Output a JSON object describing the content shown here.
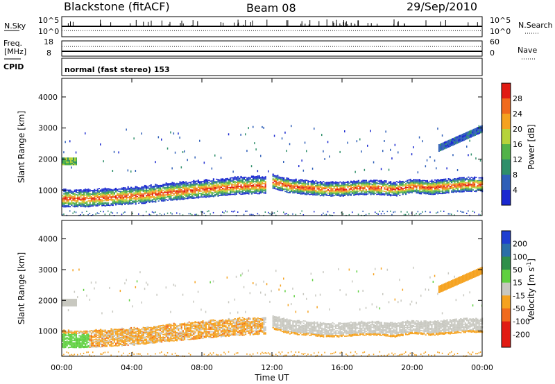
{
  "header": {
    "station": "Blackstone (fitACF)",
    "beam": "Beam 08",
    "date": "29/Sep/2010"
  },
  "top_panels": {
    "nsky_label": "N.Sky",
    "nsky_ticks": [
      "10^5",
      "10^0"
    ],
    "nsearch_label": "N.Search",
    "freq_label_1": "Freq.",
    "freq_label_2": "[MHz]",
    "freq_ticks": [
      "18",
      "8"
    ],
    "nave_ticks": [
      "60",
      "0"
    ],
    "nave_label": "Nave",
    "cpid_label": "CPID",
    "cpid_text": "normal (fast stereo) 153"
  },
  "chart_data": [
    {
      "type": "heatmap",
      "name": "power",
      "ylabel": "Slant Range [km]",
      "ylim": [
        180,
        4600
      ],
      "yticks": [
        "1000",
        "2000",
        "3000",
        "4000"
      ],
      "xlim": [
        "00:00",
        "24:00"
      ],
      "colorbar": {
        "label": "Power [dB]",
        "ticks": [
          "4",
          "8",
          "12",
          "16",
          "20",
          "24",
          "28"
        ],
        "range": [
          0,
          32
        ],
        "colors": [
          "#1a28d0",
          "#2f5fb8",
          "#2f8f6a",
          "#52b348",
          "#b6d33a",
          "#f5a21f",
          "#f06a1c",
          "#e11b13"
        ]
      },
      "bands": [
        {
          "x": [
            "00:00",
            "01:30",
            "03:00",
            "04:30",
            "06:00",
            "07:00",
            "08:00",
            "09:00",
            "10:00",
            "11:00",
            "11:40"
          ],
          "center_km": [
            700,
            700,
            750,
            800,
            900,
            950,
            1000,
            1050,
            1100,
            1120,
            1130
          ]
        },
        {
          "x": [
            "12:00",
            "13:00",
            "14:00",
            "15:00",
            "16:00",
            "17:00",
            "18:00",
            "19:00",
            "20:00",
            "21:00",
            "22:00",
            "23:00",
            "24:00"
          ],
          "center_km": [
            1250,
            1100,
            1050,
            1000,
            1000,
            1050,
            1050,
            1000,
            1100,
            1050,
            1100,
            1150,
            1150
          ]
        }
      ]
    },
    {
      "type": "heatmap",
      "name": "velocity",
      "ylabel": "Slant Range [km]",
      "xlabel": "Time UT",
      "ylim": [
        180,
        4600
      ],
      "yticks": [
        "1000",
        "2000",
        "3000",
        "4000"
      ],
      "xticks": [
        "00:00",
        "04:00",
        "08:00",
        "12:00",
        "16:00",
        "20:00",
        "00:00"
      ],
      "colorbar": {
        "label": "Velocity [m s",
        "label_superscript": "-1",
        "ticks": [
          "200",
          "100",
          "50",
          "15",
          "-15",
          "-50",
          "-100",
          "-200"
        ],
        "colors": [
          "#1f3fd0",
          "#2b6fa8",
          "#2f8f4a",
          "#5fd040",
          "#c8c8c0",
          "#f5a21f",
          "#f06a1c",
          "#e11b13",
          "#e11b13"
        ]
      }
    }
  ]
}
